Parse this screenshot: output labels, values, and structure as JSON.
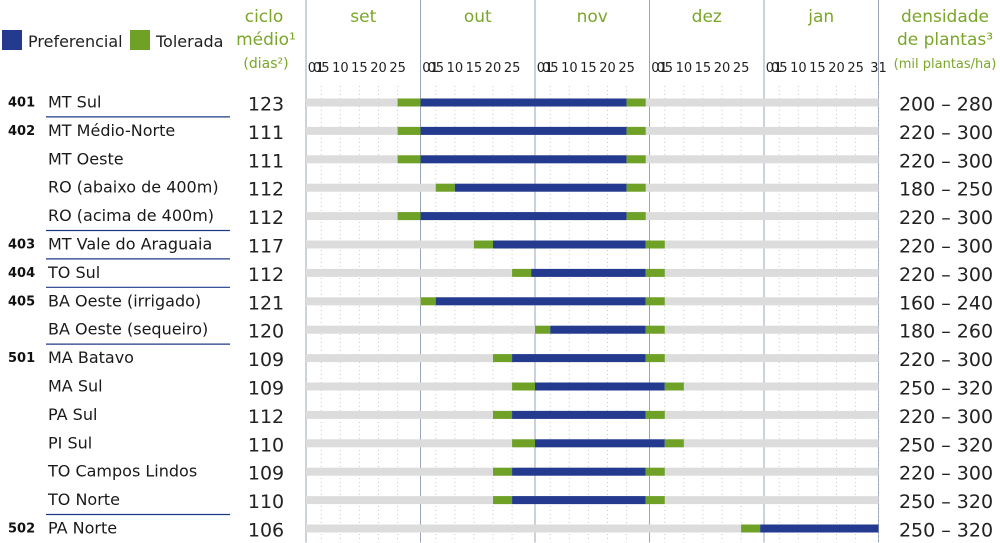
{
  "legend": [
    {
      "name": "Preferencial",
      "color": "#233a8e"
    },
    {
      "name": "Tolerada",
      "color": "#6fa127"
    }
  ],
  "headers": {
    "ciclo": [
      "ciclo",
      "médio¹",
      "(dias²)"
    ],
    "densidade": [
      "densidade",
      "de plantas³",
      "(mil plantas/ha)"
    ]
  },
  "colors": {
    "track": "#dcdcdc",
    "preferencial": "#233a8e",
    "tolerada": "#6fa127",
    "accent": "#7aa62a"
  },
  "chart_data": {
    "type": "bar",
    "subtype": "gantt",
    "months": [
      "set",
      "out",
      "nov",
      "dez",
      "jan"
    ],
    "day_ticks": {
      "set": [
        "01",
        "05",
        "10",
        "15",
        "20",
        "25"
      ],
      "out": [
        "01",
        "05",
        "10",
        "15",
        "20",
        "25"
      ],
      "nov": [
        "01",
        "05",
        "10",
        "15",
        "20",
        "25"
      ],
      "dez": [
        "01",
        "05",
        "10",
        "15",
        "20",
        "25"
      ],
      "jan": [
        "01",
        "05",
        "10",
        "15",
        "20",
        "25",
        "31"
      ]
    },
    "rows": [
      {
        "code": "401",
        "region": "MT Sul",
        "cycle": "123",
        "density": "200 – 280",
        "tol_start": "09-25",
        "pref_start": "10-01",
        "pref_end": "11-25",
        "tol_end": "11-30"
      },
      {
        "code": "402",
        "region": "MT Médio-Norte",
        "cycle": "111",
        "density": "220 – 300",
        "tol_start": "09-25",
        "pref_start": "10-01",
        "pref_end": "11-25",
        "tol_end": "11-30"
      },
      {
        "code": "",
        "region": "MT Oeste",
        "cycle": "111",
        "density": "220 – 300",
        "tol_start": "09-25",
        "pref_start": "10-01",
        "pref_end": "11-25",
        "tol_end": "11-30"
      },
      {
        "code": "",
        "region": "RO (abaixo de 400m)",
        "cycle": "112",
        "density": "180 – 250",
        "tol_start": "10-05",
        "pref_start": "10-10",
        "pref_end": "11-25",
        "tol_end": "11-30"
      },
      {
        "code": "",
        "region": "RO (acima de 400m)",
        "cycle": "112",
        "density": "220 – 300",
        "tol_start": "09-25",
        "pref_start": "10-01",
        "pref_end": "11-25",
        "tol_end": "11-30"
      },
      {
        "code": "403",
        "region": "MT Vale do Araguaia",
        "cycle": "117",
        "density": "220 – 300",
        "tol_start": "10-15",
        "pref_start": "10-20",
        "pref_end": "11-30",
        "tol_end": "12-05"
      },
      {
        "code": "404",
        "region": "TO Sul",
        "cycle": "112",
        "density": "220 – 300",
        "tol_start": "10-25",
        "pref_start": "10-30",
        "pref_end": "11-30",
        "tol_end": "12-05"
      },
      {
        "code": "405",
        "region": "BA Oeste (irrigado)",
        "cycle": "121",
        "density": "160 – 240",
        "tol_start": "10-01",
        "pref_start": "10-05",
        "pref_end": "11-30",
        "tol_end": "12-05"
      },
      {
        "code": "",
        "region": "BA Oeste (sequeiro)",
        "cycle": "120",
        "density": "180 – 260",
        "tol_start": "11-01",
        "pref_start": "11-05",
        "pref_end": "11-30",
        "tol_end": "12-05"
      },
      {
        "code": "501",
        "region": "MA Batavo",
        "cycle": "109",
        "density": "220 – 300",
        "tol_start": "10-20",
        "pref_start": "10-25",
        "pref_end": "11-30",
        "tol_end": "12-05"
      },
      {
        "code": "",
        "region": "MA Sul",
        "cycle": "109",
        "density": "250 – 320",
        "tol_start": "10-25",
        "pref_start": "11-01",
        "pref_end": "12-05",
        "tol_end": "12-10"
      },
      {
        "code": "",
        "region": "PA Sul",
        "cycle": "112",
        "density": "220 – 300",
        "tol_start": "10-20",
        "pref_start": "10-25",
        "pref_end": "11-30",
        "tol_end": "12-05"
      },
      {
        "code": "",
        "region": "PI Sul",
        "cycle": "110",
        "density": "250 – 320",
        "tol_start": "10-25",
        "pref_start": "11-01",
        "pref_end": "12-05",
        "tol_end": "12-10"
      },
      {
        "code": "",
        "region": "TO Campos Lindos",
        "cycle": "109",
        "density": "220 – 300",
        "tol_start": "10-20",
        "pref_start": "10-25",
        "pref_end": "11-30",
        "tol_end": "12-05"
      },
      {
        "code": "",
        "region": "TO Norte",
        "cycle": "110",
        "density": "250 – 320",
        "tol_start": "10-20",
        "pref_start": "10-25",
        "pref_end": "11-30",
        "tol_end": "12-05"
      },
      {
        "code": "502",
        "region": "PA Norte",
        "cycle": "106",
        "density": "250 – 320",
        "tol_start": "12-25",
        "pref_start": "12-30",
        "pref_end": "01-31",
        "tol_end": "02-05"
      }
    ]
  }
}
